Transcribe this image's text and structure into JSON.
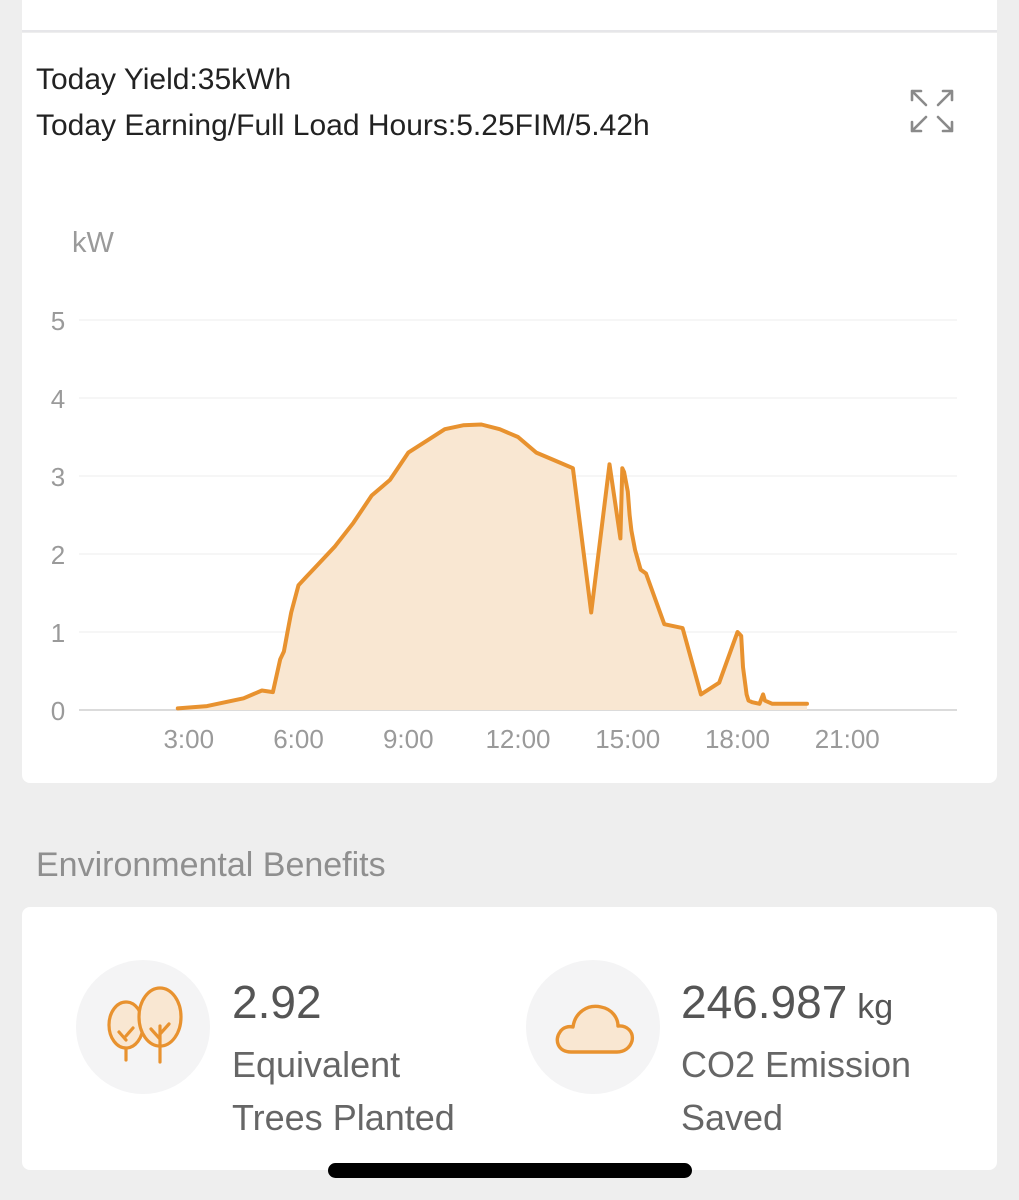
{
  "summary": {
    "yield_text": "Today Yield:35kWh",
    "earning_text": "Today Earning/Full Load Hours:5.25FIM/5.42h"
  },
  "icons": {
    "expand": "expand-arrows-icon",
    "trees": "trees-icon",
    "cloud": "cloud-icon"
  },
  "colors": {
    "accent": "#e8922f",
    "fill": "#f9e7d2",
    "grid": "#f0f0f0",
    "axis_text": "#9a9a9a"
  },
  "chart_data": {
    "type": "area",
    "title": "",
    "ylabel": "kW",
    "xlabel": "",
    "xlim": [
      0,
      24
    ],
    "ylim": [
      0,
      5
    ],
    "x_ticks": [
      3,
      6,
      9,
      12,
      15,
      18,
      21
    ],
    "x_tick_labels": [
      "3:00",
      "6:00",
      "9:00",
      "12:00",
      "15:00",
      "18:00",
      "21:00"
    ],
    "y_ticks": [
      0,
      1,
      2,
      3,
      4,
      5
    ],
    "y_tick_labels": [
      "0",
      "1",
      "2",
      "3",
      "4",
      "5"
    ],
    "grid": true,
    "legend": false,
    "series": [
      {
        "x": [
          2.7,
          3.5,
          4.5,
          5.0,
          5.3,
          5.5,
          5.6,
          5.7,
          5.8,
          6.0,
          6.1,
          6.2,
          6.5,
          7.0,
          7.5,
          8.0,
          8.5,
          9.0,
          9.5,
          10.0,
          10.5,
          11.0,
          11.5,
          12.0,
          12.5,
          13.0,
          13.5,
          14.0,
          14.5,
          14.8,
          14.85,
          14.9,
          15.0,
          15.05,
          15.1,
          15.2,
          15.35,
          15.5,
          16.0,
          16.5,
          17.0,
          17.5,
          18.0,
          18.1,
          18.15,
          18.25,
          18.3,
          18.4,
          18.6,
          18.7,
          18.75,
          18.85,
          18.95,
          19.1,
          19.2,
          19.5,
          19.9
        ],
        "y": [
          0.02,
          0.05,
          0.15,
          0.25,
          0.23,
          0.65,
          0.75,
          1.0,
          1.25,
          1.6,
          1.65,
          1.7,
          1.85,
          2.1,
          2.4,
          2.75,
          2.95,
          3.3,
          3.45,
          3.6,
          3.65,
          3.66,
          3.6,
          3.5,
          3.3,
          3.2,
          3.1,
          1.25,
          3.15,
          2.2,
          3.1,
          3.05,
          2.8,
          2.5,
          2.3,
          2.05,
          1.8,
          1.75,
          1.1,
          1.05,
          0.2,
          0.35,
          1.0,
          0.95,
          0.55,
          0.2,
          0.12,
          0.1,
          0.08,
          0.2,
          0.12,
          0.1,
          0.08,
          0.08,
          0.08,
          0.08,
          0.08
        ]
      }
    ]
  },
  "benefits": {
    "section_title": "Environmental Benefits",
    "trees": {
      "value": "2.92",
      "label_line1": "Equivalent",
      "label_line2": "Trees Planted"
    },
    "co2": {
      "value": "246.987",
      "unit": "kg",
      "label_line1": "CO2 Emission",
      "label_line2": "Saved"
    }
  }
}
